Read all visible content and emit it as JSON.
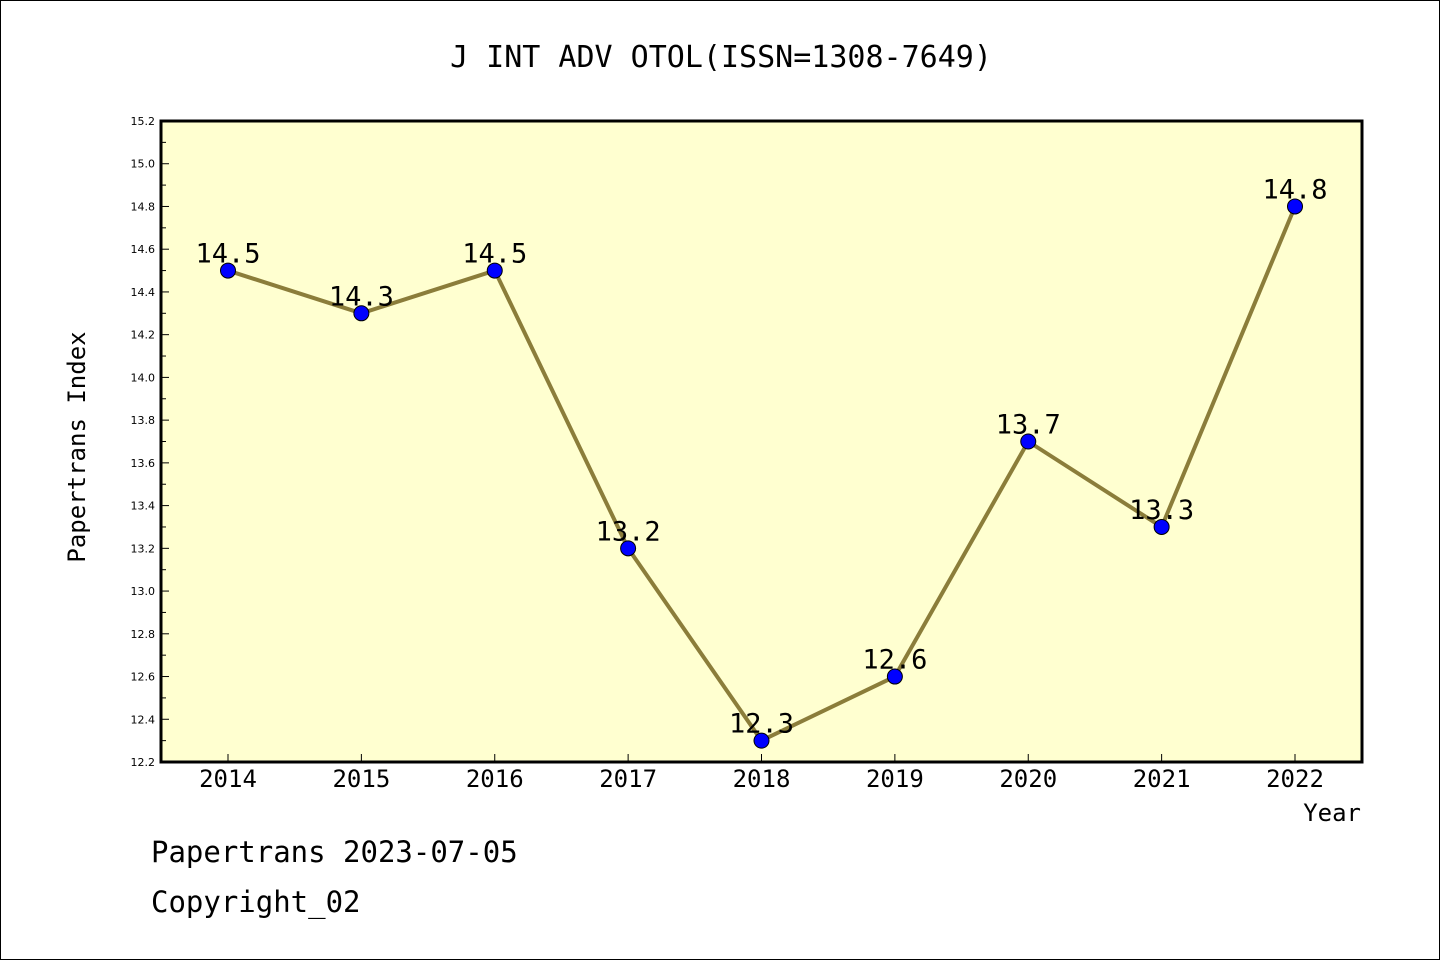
{
  "chart_data": {
    "type": "line",
    "title": "J INT ADV OTOL(ISSN=1308-7649)",
    "xlabel": "Year",
    "ylabel": "Papertrans Index",
    "categories": [
      "2014",
      "2015",
      "2016",
      "2017",
      "2018",
      "2019",
      "2020",
      "2021",
      "2022"
    ],
    "series": [
      {
        "values": [
          14.5,
          14.3,
          14.5,
          13.2,
          12.3,
          12.6,
          13.7,
          13.3,
          14.8
        ],
        "labels": [
          "14.5",
          "14.3",
          "14.5",
          "13.2",
          "12.3",
          "12.6",
          "13.7",
          "13.3",
          "14.8"
        ]
      }
    ],
    "ylim": [
      12.2,
      15.2
    ],
    "yticks": [
      "12.2",
      "12.4",
      "12.6",
      "12.8",
      "13.0",
      "13.2",
      "13.4",
      "13.6",
      "13.8",
      "14.0",
      "14.2",
      "14.4",
      "14.6",
      "14.8",
      "15.0",
      "15.2"
    ],
    "grid": false,
    "legend": "none",
    "colors": {
      "plot_background": "#ffffd0",
      "line": "#8b7d3a",
      "marker": "#0000ff"
    }
  },
  "footer": {
    "line1": "Papertrans 2023-07-05",
    "line2": "Copyright_02"
  }
}
